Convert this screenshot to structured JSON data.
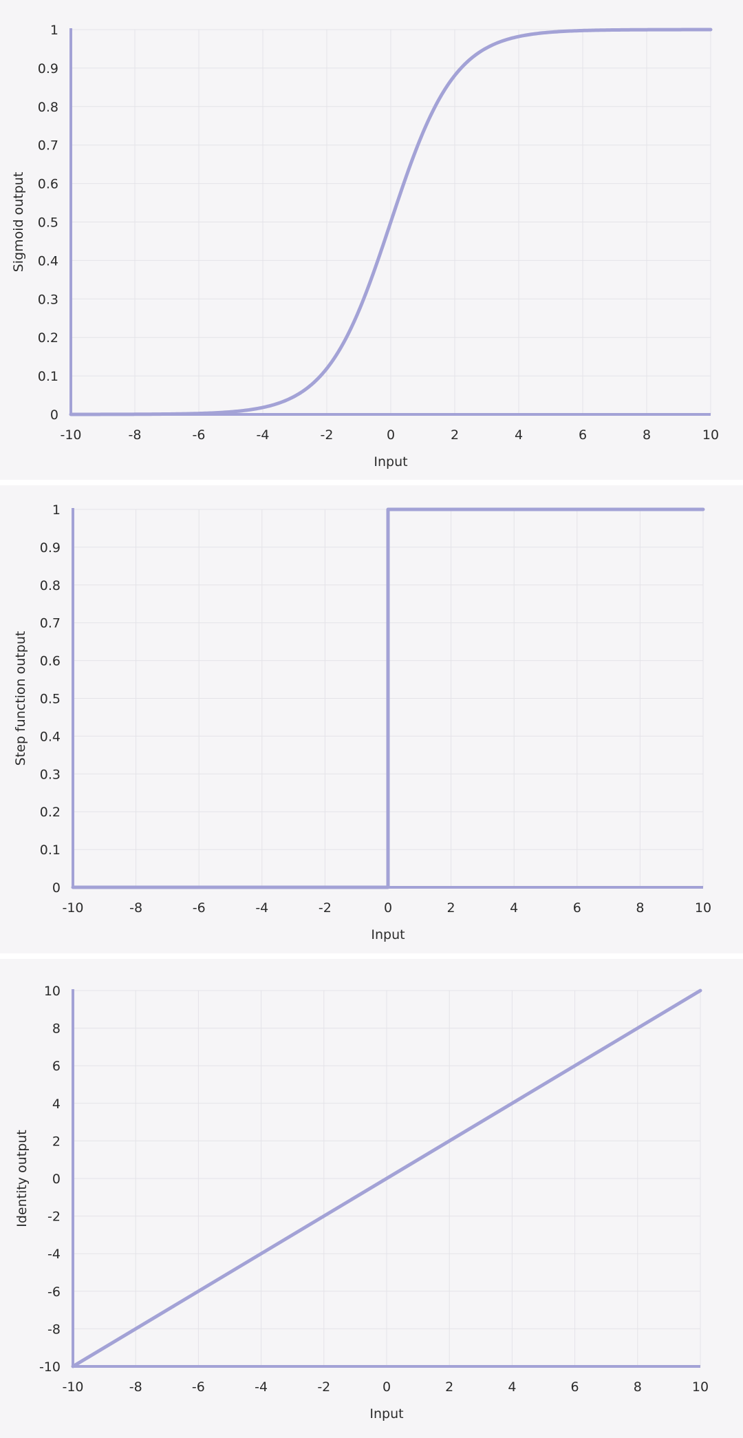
{
  "colors": {
    "line": "#a3a2d6",
    "axis": "#a3a2d6",
    "grid": "#e4e3e8",
    "background": "#f6f5f7",
    "text": "#2b2b2b"
  },
  "chart_data": [
    {
      "type": "line",
      "function": "sigmoid",
      "xlabel": "Input",
      "ylabel": "Sigmoid output",
      "xlim": [
        -10,
        10
      ],
      "ylim": [
        0,
        1
      ],
      "x_ticks": [
        "-10",
        "-8",
        "-6",
        "-4",
        "-2",
        "0",
        "2",
        "4",
        "6",
        "8",
        "10"
      ],
      "y_ticks": [
        "0",
        "0.1",
        "0.2",
        "0.3",
        "0.4",
        "0.5",
        "0.6",
        "0.7",
        "0.8",
        "0.9",
        "1"
      ],
      "grid": true,
      "series": [
        {
          "x": [
            -10,
            -8,
            -6,
            -5,
            -4,
            -3,
            -2,
            -1.5,
            -1,
            -0.5,
            0,
            0.5,
            1,
            1.5,
            2,
            3,
            4,
            5,
            6,
            8,
            10
          ],
          "y": [
            4.54e-05,
            0.000335,
            0.00247,
            0.00669,
            0.018,
            0.0474,
            0.119,
            0.182,
            0.269,
            0.378,
            0.5,
            0.622,
            0.731,
            0.818,
            0.881,
            0.953,
            0.982,
            0.993,
            0.998,
            0.9997,
            0.99995
          ]
        }
      ]
    },
    {
      "type": "line",
      "function": "step",
      "xlabel": "Input",
      "ylabel": "Step function output",
      "xlim": [
        -10,
        10
      ],
      "ylim": [
        0,
        1
      ],
      "x_ticks": [
        "-10",
        "-8",
        "-6",
        "-4",
        "-2",
        "0",
        "2",
        "4",
        "6",
        "8",
        "10"
      ],
      "y_ticks": [
        "0",
        "0.1",
        "0.2",
        "0.3",
        "0.4",
        "0.5",
        "0.6",
        "0.7",
        "0.8",
        "0.9",
        "1"
      ],
      "grid": true,
      "series": [
        {
          "x": [
            -10,
            0,
            0,
            10
          ],
          "y": [
            0,
            0,
            1,
            1
          ]
        }
      ]
    },
    {
      "type": "line",
      "function": "identity",
      "xlabel": "Input",
      "ylabel": "Identity output",
      "xlim": [
        -10,
        10
      ],
      "ylim": [
        -10,
        10
      ],
      "x_ticks": [
        "-10",
        "-8",
        "-6",
        "-4",
        "-2",
        "0",
        "2",
        "4",
        "6",
        "8",
        "10"
      ],
      "y_ticks": [
        "-10",
        "-8",
        "-6",
        "-4",
        "-2",
        "0",
        "2",
        "4",
        "6",
        "8",
        "10"
      ],
      "grid": true,
      "series": [
        {
          "x": [
            -10,
            10
          ],
          "y": [
            -10,
            10
          ]
        }
      ]
    }
  ]
}
